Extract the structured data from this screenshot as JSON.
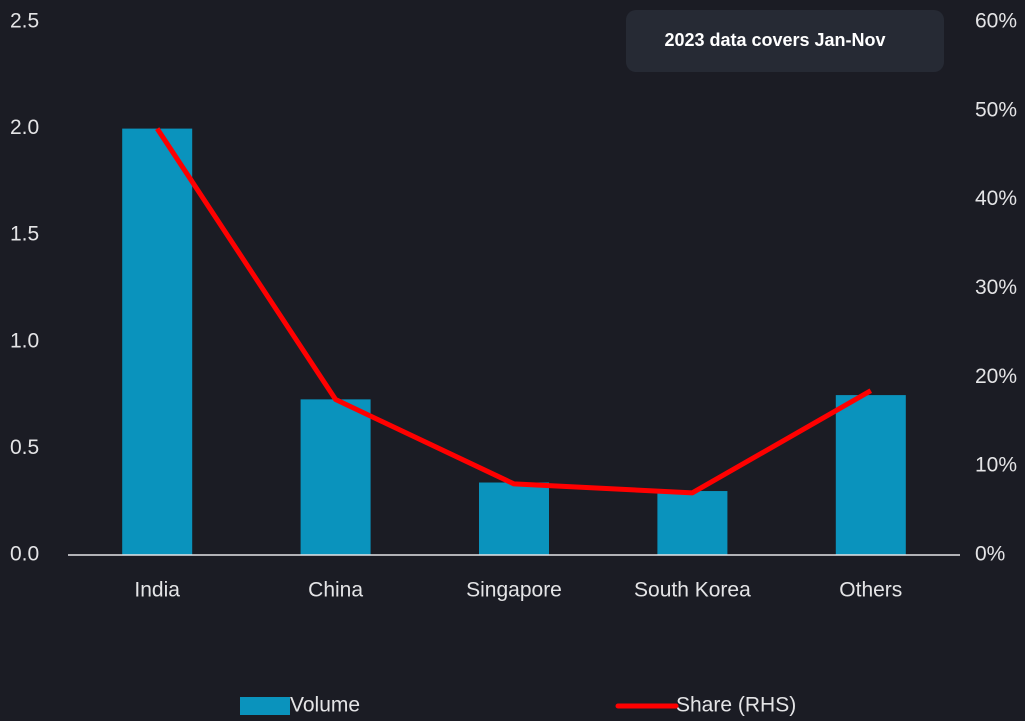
{
  "chart_data": {
    "type": "bar",
    "annotation": "2023 data covers Jan-Nov",
    "categories": [
      "India",
      "China",
      "Singapore",
      "South Korea",
      "Others"
    ],
    "series": [
      {
        "name": "Volume",
        "type": "bar",
        "color": "#0a93bd",
        "values": [
          2.0,
          0.73,
          0.34,
          0.3,
          0.75
        ]
      },
      {
        "name": "Share (RHS)",
        "type": "line",
        "axis": "y2",
        "color": "#ff0000",
        "values": [
          48,
          17.5,
          8,
          7,
          18.5
        ]
      }
    ],
    "ylim": [
      0,
      2.5
    ],
    "yticks": [
      {
        "value": 0,
        "label": "0.0"
      },
      0.5,
      {
        "value": 1,
        "label": "1.0"
      },
      1.5,
      {
        "value": 2,
        "label": "2.0"
      },
      2.5
    ],
    "y2lim": [
      0,
      60
    ],
    "y2ticks": [
      {
        "value": 0,
        "label": "0%"
      },
      {
        "value": 10,
        "label": "10%"
      },
      {
        "value": 20,
        "label": "20%"
      },
      {
        "value": 30,
        "label": "30%"
      },
      {
        "value": 40,
        "label": "40%"
      },
      {
        "value": 50,
        "label": "50%"
      },
      {
        "value": 60,
        "label": "60%"
      }
    ],
    "grid": false
  }
}
